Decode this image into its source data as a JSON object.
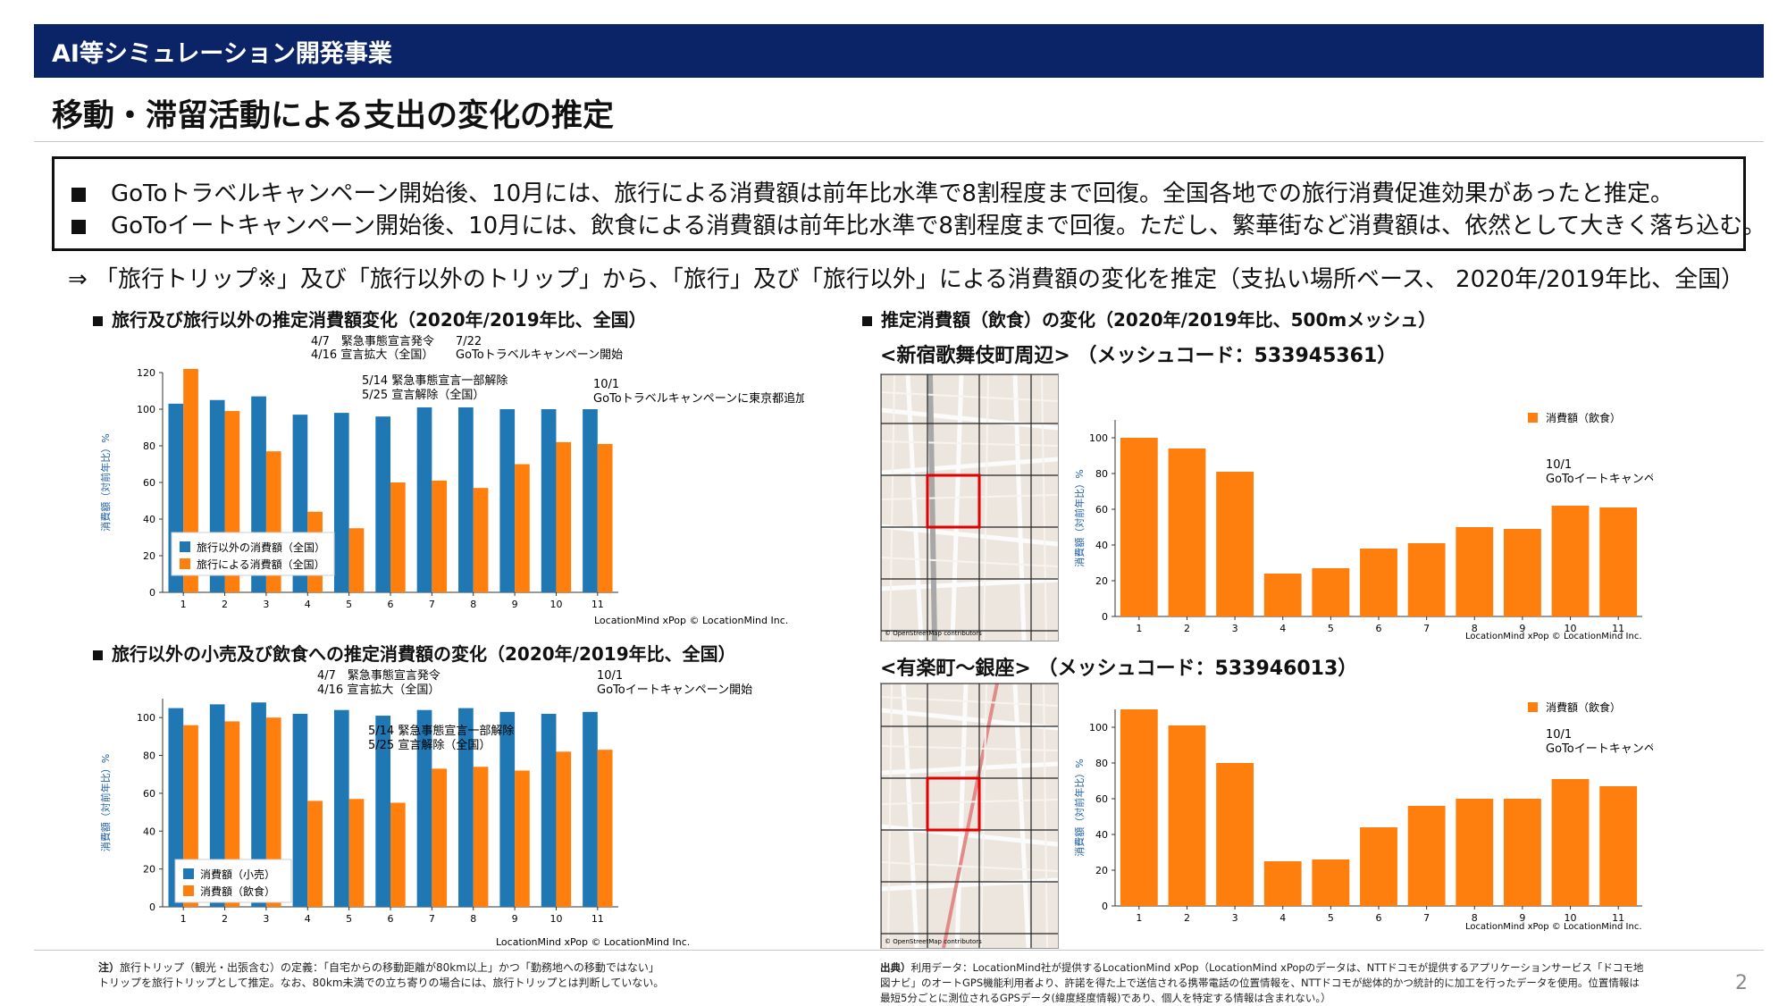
{
  "header": {
    "title": "AI等シミュレーション開発事業"
  },
  "page_title": "移動・滞留活動による支出の変化の推定",
  "summary": {
    "line1": "GoToトラベルキャンペーン開始後、10月には、旅行による消費額は前年比水準で8割程度まで回復。全国各地での旅行消費促進効果があったと推定。",
    "line2": "GoToイートキャンペーン開始後、10月には、飲食による消費額は前年比水準で8割程度まで回復。ただし、繁華街など消費額は、依然として大きく落ち込む。"
  },
  "arrow_line": "⇒ 「旅行トリップ※」及び「旅行以外のトリップ」から、「旅行」及び「旅行以外」による消費額の変化を推定（支払い場所ベース、 2020年/2019年比、全国）",
  "sections": {
    "left_top": "旅行及び旅行以外の推定消費額変化（2020年/2019年比、全国）",
    "left_bottom": "旅行以外の小売及び飲食への推定消費額の変化（2020年/2019年比、全国）",
    "right": "推定消費額（飲食）の変化（2020年/2019年比、500mメッシュ）",
    "mesh1": "<新宿歌舞伎町周辺> （メッシュコード：533945361）",
    "mesh2": "<有楽町～銀座> （メッシュコード：533946013）"
  },
  "colors": {
    "blue": "#1f77b4",
    "orange": "#ff7f0e",
    "navy": "#0b2467",
    "map_highlight": "#e00000"
  },
  "chart_data": [
    {
      "type": "bar",
      "categories": [
        "1",
        "2",
        "3",
        "4",
        "5",
        "6",
        "7",
        "8",
        "9",
        "10",
        "11"
      ],
      "series": [
        {
          "name": "旅行以外の消費額（全国）",
          "color": "#1f77b4",
          "values": [
            103,
            105,
            107,
            97,
            98,
            96,
            101,
            101,
            100,
            100,
            100
          ]
        },
        {
          "name": "旅行による消費額（全国）",
          "color": "#ff7f0e",
          "values": [
            122,
            99,
            77,
            44,
            35,
            60,
            61,
            57,
            70,
            82,
            81
          ]
        }
      ],
      "ylabel": "消費額（対前年比）%",
      "ylim": [
        0,
        120
      ],
      "yticks": [
        0,
        20,
        40,
        60,
        80,
        100,
        120
      ],
      "legend": "bottom-left",
      "annotations": [
        "4/7　緊急事態宣言発令",
        "4/16 宣言拡大（全国）",
        "7/22",
        "GoToトラベルキャンペーン開始",
        "5/14 緊急事態宣言一部解除",
        "5/25 宣言解除（全国）",
        "10/1",
        "GoToトラベルキャンペーンに東京都追加"
      ],
      "credit": "LocationMind xPop © LocationMind Inc."
    },
    {
      "type": "bar",
      "categories": [
        "1",
        "2",
        "3",
        "4",
        "5",
        "6",
        "7",
        "8",
        "9",
        "10",
        "11"
      ],
      "series": [
        {
          "name": "消費額（小売）",
          "color": "#1f77b4",
          "values": [
            105,
            107,
            108,
            102,
            104,
            101,
            104,
            105,
            103,
            102,
            103
          ]
        },
        {
          "name": "消費額（飲食）",
          "color": "#ff7f0e",
          "values": [
            96,
            98,
            100,
            56,
            57,
            55,
            73,
            74,
            72,
            82,
            83
          ]
        }
      ],
      "ylabel": "消費額（対前年比）%",
      "ylim": [
        0,
        110
      ],
      "yticks": [
        0,
        20,
        40,
        60,
        80,
        100
      ],
      "legend": "bottom-left",
      "annotations": [
        "4/7　緊急事態宣言発令",
        "4/16 宣言拡大（全国）",
        "10/1",
        "GoToイートキャンペーン開始",
        "5/14 緊急事態宣言一部解除",
        "5/25 宣言解除（全国）"
      ],
      "credit": "LocationMind xPop © LocationMind Inc."
    },
    {
      "type": "bar",
      "categories": [
        "1",
        "2",
        "3",
        "4",
        "5",
        "6",
        "7",
        "8",
        "9",
        "10",
        "11"
      ],
      "series": [
        {
          "name": "消費額（飲食）",
          "color": "#ff7f0e",
          "values": [
            100,
            94,
            81,
            24,
            27,
            38,
            41,
            50,
            49,
            62,
            61
          ]
        }
      ],
      "ylabel": "消費額（対前年比）%",
      "ylim": [
        0,
        110
      ],
      "yticks": [
        0,
        20,
        40,
        60,
        80,
        100
      ],
      "legend": "top-right",
      "annotations": [
        "10/1",
        "GoToイートキャンペーン開始"
      ],
      "credit": "LocationMind xPop © LocationMind Inc."
    },
    {
      "type": "bar",
      "categories": [
        "1",
        "2",
        "3",
        "4",
        "5",
        "6",
        "7",
        "8",
        "9",
        "10",
        "11"
      ],
      "series": [
        {
          "name": "消費額（飲食）",
          "color": "#ff7f0e",
          "values": [
            110,
            101,
            80,
            25,
            26,
            44,
            56,
            60,
            60,
            71,
            67
          ]
        }
      ],
      "ylabel": "消費額（対前年比）%",
      "ylim": [
        0,
        110
      ],
      "yticks": [
        0,
        20,
        40,
        60,
        80,
        100
      ],
      "legend": "top-right",
      "annotations": [
        "10/1",
        "GoToイートキャンペーン開始"
      ],
      "credit": "LocationMind xPop © LocationMind Inc."
    }
  ],
  "maps": {
    "credit": "© OpenStreetMap contributors"
  },
  "footer": {
    "note_label": "注）",
    "note_line1": "旅行トリップ（観光・出張含む）の定義：「自宅からの移動距離が80km以上」かつ「勤務地への移動ではない」",
    "note_line2": "トリップを旅行トリップとして推定。なお、80km未満での立ち寄りの場合には、旅行トリップとは判断していない。",
    "source_label": "出典）",
    "source_line1": "利用データ：LocationMind社が提供するLocationMind xPop（LocationMind xPopのデータは、NTTドコモが提供するアプリケーションサービス「ドコモ地",
    "source_line2": "図ナビ」のオートGPS機能利用者より、許諾を得た上で送信される携帯電話の位置情報を、NTTドコモが総体的かつ統計的に加工を行ったデータを使用。位置情報は",
    "source_line3": "最短5分ごとに測位されるGPSデータ(緯度経度情報)であり、個人を特定する情報は含まれない。）",
    "page_number": "2"
  }
}
